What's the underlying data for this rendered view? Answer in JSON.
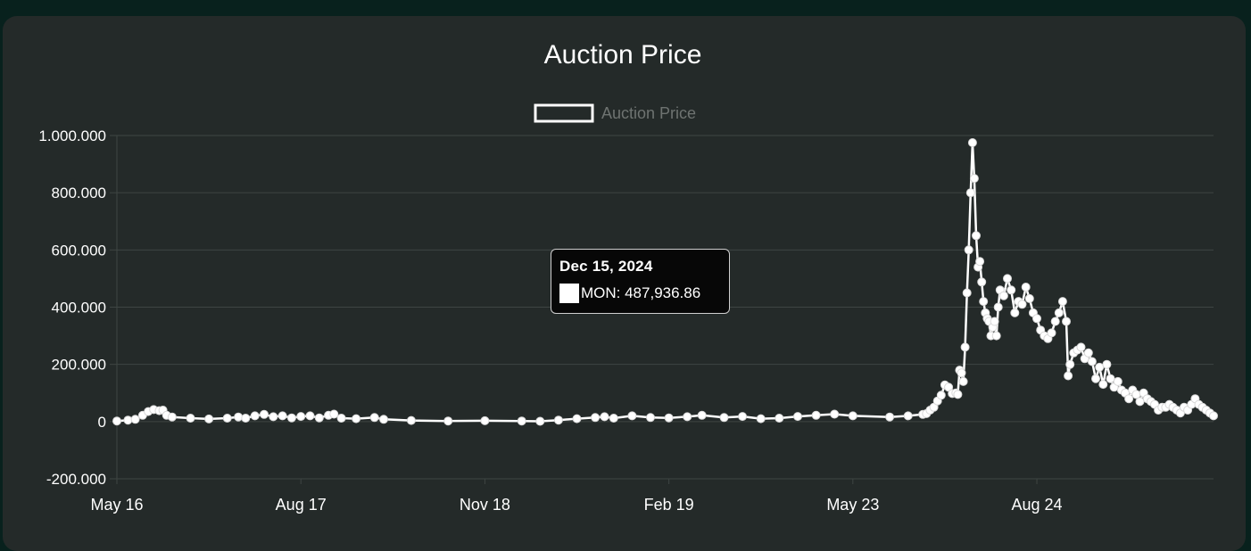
{
  "chart_data": {
    "type": "line",
    "title": "Auction Price",
    "legend": {
      "label": "Auction Price",
      "position": "top-center"
    },
    "xlabel": "",
    "ylabel": "",
    "ylim": [
      -200000,
      1000000
    ],
    "y_ticks": [
      "1.000.000",
      "800.000",
      "600.000",
      "400.000",
      "200.000",
      "0",
      "-200.000"
    ],
    "y_tick_values": [
      1000000,
      800000,
      600000,
      400000,
      200000,
      0,
      -200000
    ],
    "x_ticks": [
      "May 16",
      "Aug 17",
      "Nov 18",
      "Feb 19",
      "May 23",
      "Aug 24"
    ],
    "x_tick_index": [
      0,
      100,
      200,
      300,
      400,
      500
    ],
    "x_range": [
      0,
      596
    ],
    "series": [
      {
        "name": "Auction Price",
        "points": [
          [
            0,
            2000
          ],
          [
            6,
            5000
          ],
          [
            10,
            8000
          ],
          [
            14,
            22000
          ],
          [
            17,
            35000
          ],
          [
            20,
            42000
          ],
          [
            23,
            38000
          ],
          [
            25,
            40000
          ],
          [
            27,
            22000
          ],
          [
            30,
            16000
          ],
          [
            40,
            12000
          ],
          [
            50,
            9000
          ],
          [
            60,
            12000
          ],
          [
            66,
            16000
          ],
          [
            70,
            12000
          ],
          [
            75,
            20000
          ],
          [
            80,
            25000
          ],
          [
            85,
            17000
          ],
          [
            90,
            20000
          ],
          [
            95,
            13000
          ],
          [
            100,
            18000
          ],
          [
            105,
            20000
          ],
          [
            110,
            13000
          ],
          [
            115,
            22000
          ],
          [
            118,
            26000
          ],
          [
            122,
            12000
          ],
          [
            130,
            10000
          ],
          [
            140,
            14000
          ],
          [
            145,
            8000
          ],
          [
            160,
            4000
          ],
          [
            180,
            2000
          ],
          [
            200,
            3000
          ],
          [
            220,
            2000
          ],
          [
            230,
            1000
          ],
          [
            240,
            5000
          ],
          [
            250,
            10000
          ],
          [
            260,
            14000
          ],
          [
            265,
            17000
          ],
          [
            270,
            12000
          ],
          [
            280,
            20000
          ],
          [
            290,
            14000
          ],
          [
            300,
            13000
          ],
          [
            310,
            17000
          ],
          [
            318,
            22000
          ],
          [
            330,
            14000
          ],
          [
            340,
            18000
          ],
          [
            350,
            10000
          ],
          [
            360,
            12000
          ],
          [
            370,
            18000
          ],
          [
            380,
            22000
          ],
          [
            390,
            26000
          ],
          [
            400,
            20000
          ],
          [
            420,
            16000
          ],
          [
            430,
            20000
          ],
          [
            438,
            25000
          ],
          [
            440,
            28000
          ],
          [
            442,
            40000
          ],
          [
            444,
            50000
          ],
          [
            446,
            72000
          ],
          [
            448,
            92000
          ],
          [
            450,
            128000
          ],
          [
            452,
            120000
          ],
          [
            454,
            98000
          ],
          [
            456,
            100000
          ],
          [
            457,
            95000
          ],
          [
            458,
            180000
          ],
          [
            459,
            170000
          ],
          [
            460,
            140000
          ],
          [
            461,
            260000
          ],
          [
            462,
            450000
          ],
          [
            463,
            600000
          ],
          [
            464,
            800000
          ],
          [
            465,
            975000
          ],
          [
            466,
            850000
          ],
          [
            467,
            650000
          ],
          [
            468,
            540000
          ],
          [
            469,
            560000
          ],
          [
            470,
            487937
          ],
          [
            471,
            420000
          ],
          [
            472,
            380000
          ],
          [
            473,
            360000
          ],
          [
            474,
            350000
          ],
          [
            475,
            300000
          ],
          [
            476,
            330000
          ],
          [
            477,
            350000
          ],
          [
            478,
            300000
          ],
          [
            479,
            400000
          ],
          [
            480,
            460000
          ],
          [
            482,
            440000
          ],
          [
            484,
            500000
          ],
          [
            486,
            460000
          ],
          [
            488,
            380000
          ],
          [
            490,
            420000
          ],
          [
            492,
            410000
          ],
          [
            494,
            470000
          ],
          [
            496,
            430000
          ],
          [
            498,
            380000
          ],
          [
            500,
            360000
          ],
          [
            502,
            320000
          ],
          [
            504,
            300000
          ],
          [
            506,
            290000
          ],
          [
            508,
            310000
          ],
          [
            510,
            350000
          ],
          [
            512,
            380000
          ],
          [
            514,
            420000
          ],
          [
            516,
            350000
          ],
          [
            517,
            160000
          ],
          [
            518,
            200000
          ],
          [
            520,
            240000
          ],
          [
            522,
            250000
          ],
          [
            524,
            260000
          ],
          [
            526,
            220000
          ],
          [
            528,
            240000
          ],
          [
            530,
            210000
          ],
          [
            532,
            150000
          ],
          [
            534,
            190000
          ],
          [
            536,
            130000
          ],
          [
            538,
            200000
          ],
          [
            540,
            150000
          ],
          [
            542,
            120000
          ],
          [
            544,
            140000
          ],
          [
            546,
            110000
          ],
          [
            548,
            100000
          ],
          [
            550,
            80000
          ],
          [
            552,
            110000
          ],
          [
            554,
            95000
          ],
          [
            556,
            70000
          ],
          [
            558,
            100000
          ],
          [
            560,
            80000
          ],
          [
            562,
            70000
          ],
          [
            564,
            60000
          ],
          [
            566,
            40000
          ],
          [
            568,
            50000
          ],
          [
            570,
            50000
          ],
          [
            572,
            60000
          ],
          [
            574,
            50000
          ],
          [
            576,
            40000
          ],
          [
            578,
            30000
          ],
          [
            580,
            50000
          ],
          [
            582,
            40000
          ],
          [
            584,
            60000
          ],
          [
            586,
            80000
          ],
          [
            588,
            60000
          ],
          [
            590,
            50000
          ],
          [
            592,
            40000
          ],
          [
            594,
            30000
          ],
          [
            596,
            20000
          ]
        ]
      }
    ],
    "tooltip": {
      "title": "Dec 15, 2024",
      "label": "MON: 487,936.86"
    }
  }
}
